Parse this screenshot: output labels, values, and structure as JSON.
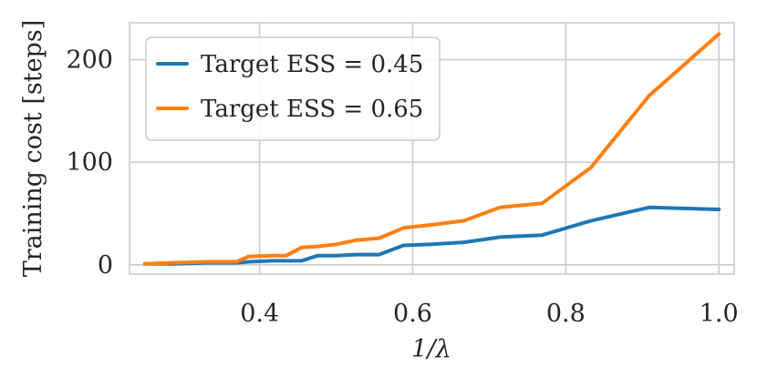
{
  "chart_data": {
    "type": "line",
    "title": "",
    "xlabel": "1/λ",
    "ylabel": "Training cost [steps]",
    "xlim": [
      0.23,
      1.02
    ],
    "ylim": [
      -9,
      236
    ],
    "xticks": [
      0.4,
      0.6,
      0.8,
      1.0
    ],
    "xtick_labels": [
      "0.4",
      "0.6",
      "0.8",
      "1.0"
    ],
    "yticks": [
      0,
      100,
      200
    ],
    "ytick_labels": [
      "0",
      "100",
      "200"
    ],
    "grid": true,
    "legend_position": "top-left",
    "series": [
      {
        "name": "Target ESS = 0.45",
        "color": "#1f77b4",
        "x": [
          0.25,
          0.286,
          0.333,
          0.37,
          0.385,
          0.417,
          0.435,
          0.455,
          0.476,
          0.5,
          0.526,
          0.556,
          0.588,
          0.625,
          0.667,
          0.714,
          0.769,
          0.833,
          0.909,
          1.0
        ],
        "y": [
          1,
          1,
          2,
          2,
          3,
          4,
          4,
          4,
          9,
          9,
          10,
          10,
          19,
          20,
          22,
          27,
          29,
          43,
          56,
          54
        ]
      },
      {
        "name": "Target ESS = 0.65",
        "color": "#ff7f0e",
        "x": [
          0.25,
          0.286,
          0.333,
          0.37,
          0.385,
          0.417,
          0.435,
          0.455,
          0.476,
          0.5,
          0.526,
          0.556,
          0.588,
          0.625,
          0.667,
          0.714,
          0.769,
          0.833,
          0.909,
          1.0
        ],
        "y": [
          1,
          2,
          3,
          3,
          8,
          9,
          9,
          17,
          18,
          20,
          24,
          26,
          36,
          39,
          43,
          56,
          60,
          95,
          165,
          225
        ]
      }
    ]
  }
}
